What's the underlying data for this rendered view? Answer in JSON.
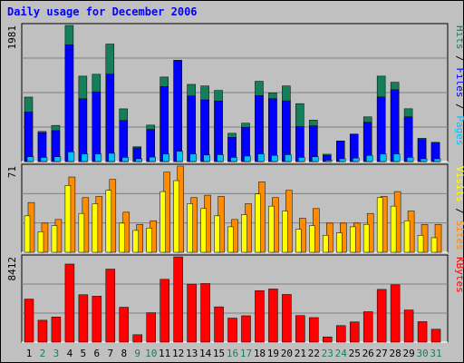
{
  "window": {
    "title": "Daily usage for December 2006"
  },
  "colors": {
    "hits": "#157f5c",
    "files": "#0000ff",
    "pages": "#00c0ff",
    "visits": "#ff8c00",
    "sites": "#ffff00",
    "kbytes": "#ff0000",
    "title": "#0000ff",
    "weekend_label": "#157f5c",
    "weekday_label": "#000000"
  },
  "chart_data": [
    {
      "type": "bar",
      "panel": "hits-files-pages",
      "ymax_label": "1981",
      "ymax": 1981,
      "categories": [
        "1",
        "2",
        "3",
        "4",
        "5",
        "6",
        "7",
        "8",
        "9",
        "10",
        "11",
        "12",
        "13",
        "14",
        "15",
        "16",
        "17",
        "18",
        "19",
        "20",
        "21",
        "22",
        "23",
        "24",
        "25",
        "26",
        "27",
        "28",
        "29",
        "30",
        "31"
      ],
      "series": [
        {
          "name": "Hits",
          "values": [
            938,
            438,
            526,
            1981,
            1243,
            1270,
            1710,
            767,
            215,
            530,
            1230,
            1474,
            1123,
            1100,
            1035,
            411,
            558,
            1168,
            1000,
            1100,
            843,
            603,
            107,
            300,
            400,
            650,
            1243,
            1154,
            768,
            340,
            280
          ]
        },
        {
          "name": "Files",
          "values": [
            720,
            420,
            450,
            1698,
            913,
            1015,
            1272,
            597,
            200,
            467,
            1091,
            1471,
            955,
            898,
            882,
            352,
            497,
            960,
            915,
            883,
            509,
            520,
            90,
            300,
            397,
            570,
            940,
            1045,
            650,
            320,
            270
          ]
        },
        {
          "name": "Pages",
          "values": [
            70,
            60,
            70,
            140,
            110,
            110,
            120,
            60,
            40,
            65,
            110,
            150,
            110,
            95,
            100,
            60,
            80,
            110,
            90,
            100,
            60,
            70,
            20,
            40,
            50,
            90,
            110,
            110,
            60,
            40,
            40
          ]
        }
      ],
      "legend": [
        "Pages",
        "Files",
        "Hits"
      ]
    },
    {
      "type": "bar",
      "panel": "sites-visits",
      "ymax_label": "71",
      "ymax": 71,
      "categories": [
        "1",
        "2",
        "3",
        "4",
        "5",
        "6",
        "7",
        "8",
        "9",
        "10",
        "11",
        "12",
        "13",
        "14",
        "15",
        "16",
        "17",
        "18",
        "19",
        "20",
        "21",
        "22",
        "23",
        "24",
        "25",
        "26",
        "27",
        "28",
        "29",
        "30",
        "31"
      ],
      "series": [
        {
          "name": "Sites",
          "values": [
            30,
            17,
            22,
            55,
            32,
            40,
            51,
            24,
            18,
            20,
            50,
            59,
            40,
            36,
            30,
            21,
            31,
            48,
            38,
            34,
            19,
            22,
            14,
            16,
            21,
            23,
            45,
            38,
            26,
            14,
            12
          ]
        },
        {
          "name": "Visits",
          "values": [
            41,
            24,
            27,
            62,
            45,
            46,
            60,
            33,
            23,
            26,
            66,
            71,
            45,
            47,
            46,
            27,
            40,
            58,
            45,
            51,
            28,
            36,
            24,
            24,
            24,
            32,
            46,
            50,
            34,
            23,
            23
          ]
        }
      ],
      "legend": [
        "Sites",
        "Visits"
      ]
    },
    {
      "type": "bar",
      "panel": "kbytes",
      "ymax_label": "8412",
      "ymax": 8412,
      "categories": [
        "1",
        "2",
        "3",
        "4",
        "5",
        "6",
        "7",
        "8",
        "9",
        "10",
        "11",
        "12",
        "13",
        "14",
        "15",
        "16",
        "17",
        "18",
        "19",
        "20",
        "21",
        "22",
        "23",
        "24",
        "25",
        "26",
        "27",
        "28",
        "29",
        "30",
        "31"
      ],
      "series": [
        {
          "name": "KBytes",
          "values": [
            4245,
            2160,
            2480,
            7700,
            4672,
            4530,
            7200,
            3440,
            730,
            2900,
            6194,
            8412,
            5720,
            5780,
            3480,
            2370,
            2600,
            5080,
            5240,
            4700,
            2620,
            2420,
            517,
            1630,
            1990,
            3000,
            5200,
            5650,
            3170,
            2020,
            1270
          ]
        }
      ],
      "legend": [
        "KBytes"
      ]
    }
  ],
  "x_labels": {
    "weekend_days": [
      2,
      3,
      9,
      10,
      16,
      17,
      23,
      24,
      30,
      31
    ]
  }
}
